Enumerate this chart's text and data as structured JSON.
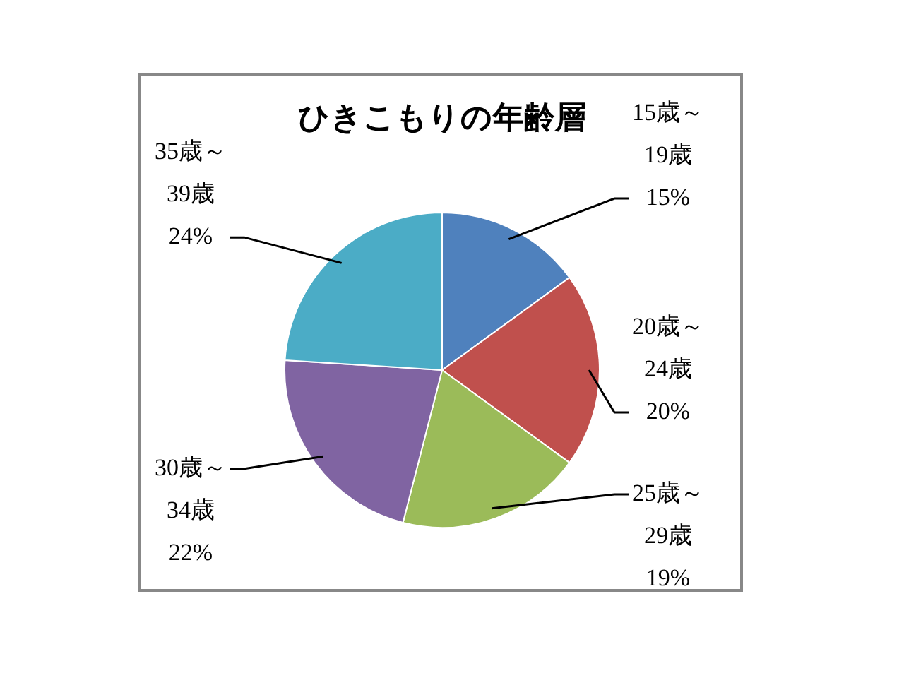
{
  "chart_data": {
    "type": "pie",
    "title": "ひきこもりの年齢層",
    "categories": [
      "15歳～19歳",
      "20歳～24歳",
      "25歳～29歳",
      "30歳～34歳",
      "35歳～39歳"
    ],
    "values": [
      15,
      20,
      19,
      22,
      24
    ],
    "value_labels": [
      "15%",
      "20%",
      "19%",
      "22%",
      "24%"
    ],
    "colors": [
      "#4f81bd",
      "#c0504d",
      "#9bbb59",
      "#8064a2",
      "#4bacc6"
    ],
    "legend": false
  }
}
